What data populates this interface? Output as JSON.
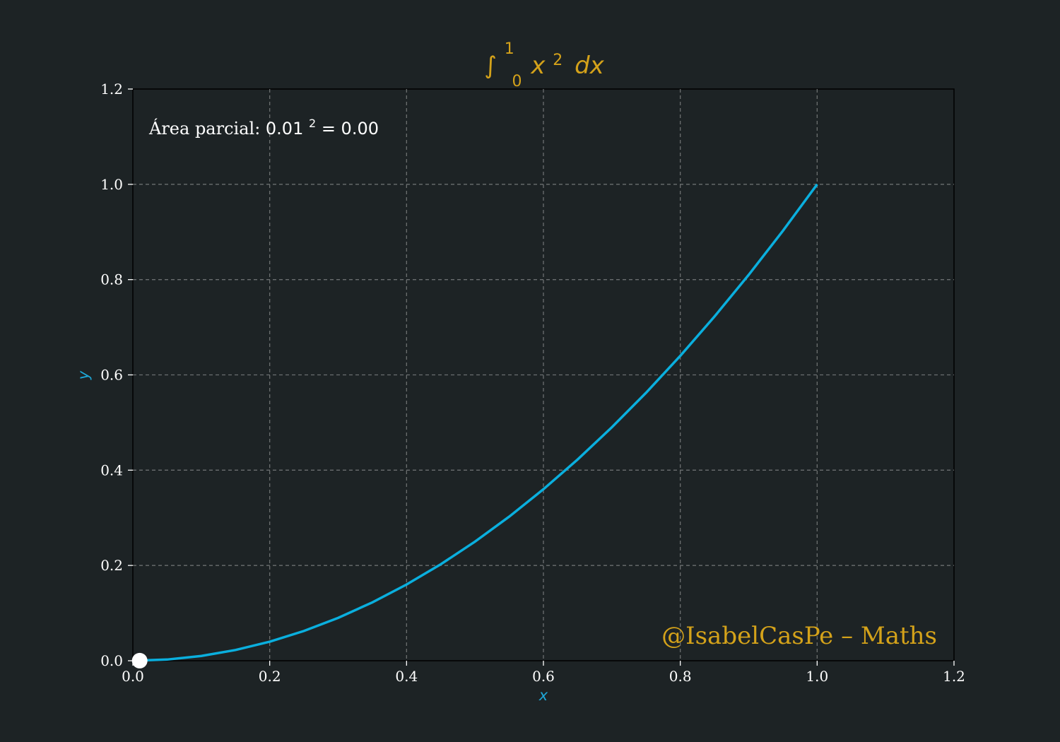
{
  "chart_data": {
    "type": "line",
    "title": {
      "integral_sign": "∫",
      "upper_limit": "1",
      "lower_limit": "0",
      "integrand": "x",
      "exponent": "2",
      "differential": "dx"
    },
    "xlabel": "x",
    "ylabel": "y",
    "xlim": [
      0.0,
      1.2
    ],
    "ylim": [
      0.0,
      1.2
    ],
    "x_ticks": [
      0.0,
      0.2,
      0.4,
      0.6,
      0.8,
      1.0,
      1.2
    ],
    "y_ticks": [
      0.0,
      0.2,
      0.4,
      0.6,
      0.8,
      1.0,
      1.2
    ],
    "x_tick_labels": [
      "0.0",
      "0.2",
      "0.4",
      "0.6",
      "0.8",
      "1.0",
      "1.2"
    ],
    "y_tick_labels": [
      "0.0",
      "0.2",
      "0.4",
      "0.6",
      "0.8",
      "1.0",
      "1.2"
    ],
    "grid": true,
    "series": [
      {
        "function": "x^2",
        "color": "#0aafde",
        "x": [
          0.0,
          0.05,
          0.1,
          0.15,
          0.2,
          0.25,
          0.3,
          0.35,
          0.4,
          0.45,
          0.5,
          0.55,
          0.6,
          0.65,
          0.7,
          0.75,
          0.8,
          0.85,
          0.9,
          0.95,
          1.0
        ],
        "y": [
          0.0,
          0.0025,
          0.01,
          0.0225,
          0.04,
          0.0625,
          0.09,
          0.1225,
          0.16,
          0.2025,
          0.25,
          0.3025,
          0.36,
          0.4225,
          0.49,
          0.5625,
          0.64,
          0.7225,
          0.81,
          0.9025,
          1.0
        ]
      }
    ],
    "marker": {
      "x": 0.01,
      "y": 0.0001,
      "color": "#ffffff"
    },
    "annotation": {
      "prefix": "Área parcial: ",
      "base": "0.01",
      "exponent": "2",
      "equals": " = 0.00"
    },
    "watermark": "@IsabelCasPe – Maths",
    "colors": {
      "background": "#1d2325",
      "curve": "#0aafde",
      "accent": "#d4a21a",
      "grid": "#6b6f70",
      "text": "#ffffff"
    }
  }
}
